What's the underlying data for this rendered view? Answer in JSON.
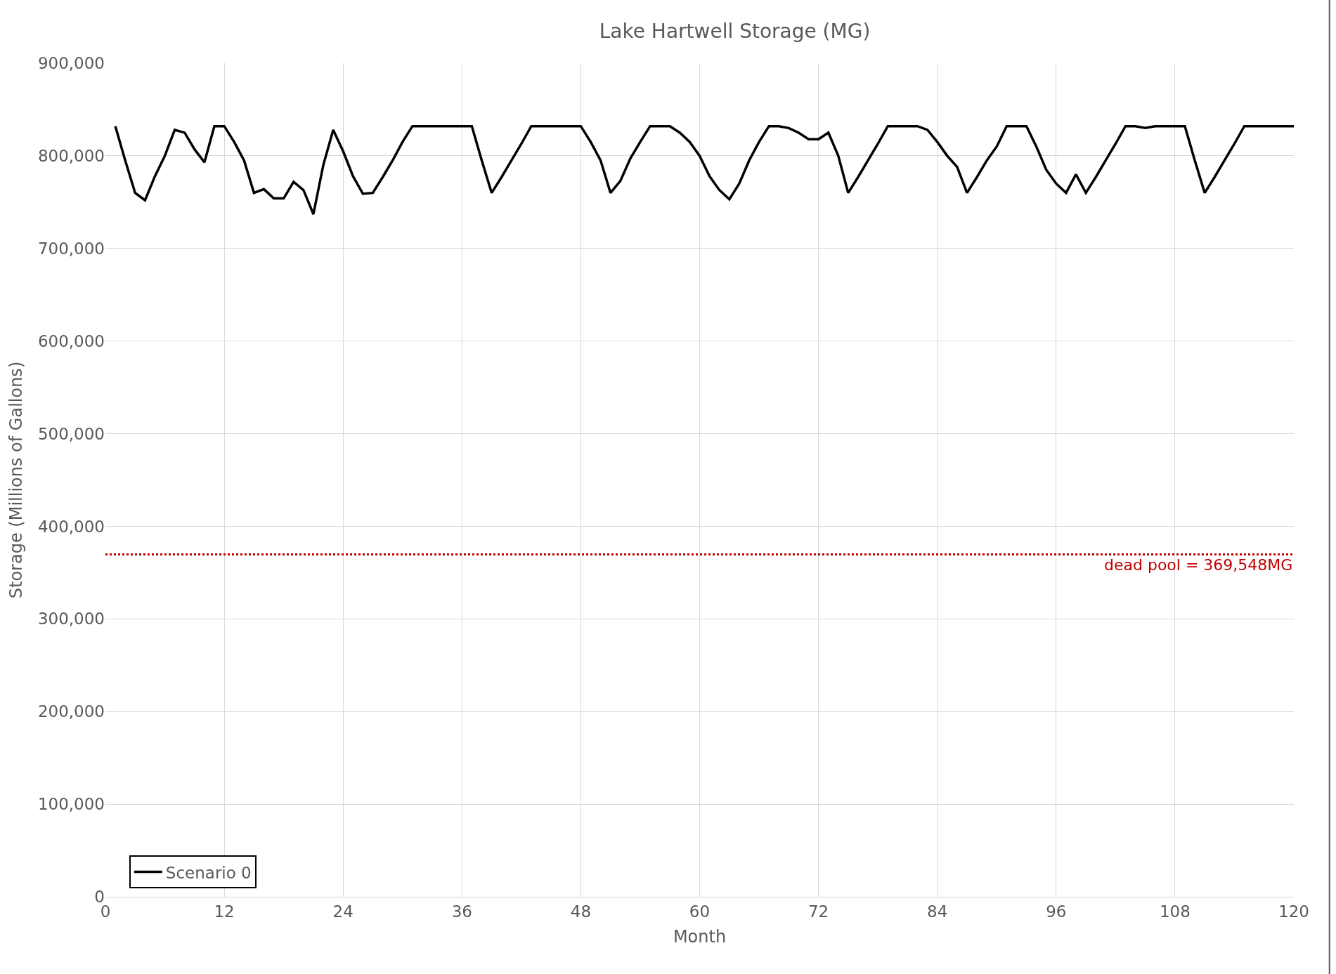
{
  "chart_data": {
    "type": "line",
    "title": "Lake Hartwell Storage (MG)",
    "xlabel": "Month",
    "ylabel": "Storage (Millions of Gallons)",
    "x": [
      1,
      2,
      3,
      4,
      5,
      6,
      7,
      8,
      9,
      10,
      11,
      12,
      13,
      14,
      15,
      16,
      17,
      18,
      19,
      20,
      21,
      22,
      23,
      24,
      25,
      26,
      27,
      28,
      29,
      30,
      31,
      32,
      33,
      34,
      35,
      36,
      37,
      38,
      39,
      40,
      41,
      42,
      43,
      44,
      45,
      46,
      47,
      48,
      49,
      50,
      51,
      52,
      53,
      54,
      55,
      56,
      57,
      58,
      59,
      60,
      61,
      62,
      63,
      64,
      65,
      66,
      67,
      68,
      69,
      70,
      71,
      72,
      73,
      74,
      75,
      76,
      77,
      78,
      79,
      80,
      81,
      82,
      83,
      84,
      85,
      86,
      87,
      88,
      89,
      90,
      91,
      92,
      93,
      94,
      95,
      96,
      97,
      98,
      99,
      100,
      101,
      102,
      103,
      104,
      105,
      106,
      107,
      108,
      109,
      110,
      111,
      112,
      113,
      114,
      115,
      116,
      117,
      118,
      119,
      120
    ],
    "series": [
      {
        "name": "Scenario 0",
        "color": "#000000",
        "values": [
          832000,
          795000,
          760000,
          752000,
          778000,
          800000,
          828000,
          825000,
          807000,
          793000,
          832000,
          832000,
          815000,
          795000,
          760000,
          764000,
          754000,
          754000,
          772000,
          763000,
          737000,
          790000,
          828000,
          805000,
          778000,
          759000,
          760000,
          777000,
          795000,
          815000,
          832000,
          832000,
          832000,
          832000,
          832000,
          832000,
          832000,
          795000,
          760000,
          777000,
          795000,
          813000,
          832000,
          832000,
          832000,
          832000,
          832000,
          832000,
          815000,
          795000,
          760000,
          773000,
          797000,
          815000,
          832000,
          832000,
          832000,
          825000,
          815000,
          800000,
          778000,
          763000,
          753000,
          770000,
          795000,
          815000,
          832000,
          832000,
          830000,
          825000,
          818000,
          818000,
          825000,
          800000,
          760000,
          777000,
          795000,
          813000,
          832000,
          832000,
          832000,
          832000,
          828000,
          815000,
          800000,
          788000,
          760000,
          777000,
          795000,
          810000,
          832000,
          832000,
          832000,
          810000,
          785000,
          770000,
          760000,
          780000,
          760000,
          777000,
          795000,
          813000,
          832000,
          832000,
          830000,
          832000,
          832000,
          832000,
          832000,
          795000,
          760000,
          777000,
          795000,
          813000,
          832000,
          832000,
          832000,
          832000,
          832000,
          832000
        ]
      }
    ],
    "xlim": [
      0,
      120
    ],
    "xticks": [
      0,
      12,
      24,
      36,
      48,
      60,
      72,
      84,
      96,
      108,
      120
    ],
    "ylim": [
      0,
      900000
    ],
    "yticks": [
      {
        "value": 0,
        "label": "0"
      },
      {
        "value": 100000,
        "label": "100,000"
      },
      {
        "value": 200000,
        "label": "200,000"
      },
      {
        "value": 300000,
        "label": "300,000"
      },
      {
        "value": 400000,
        "label": "400,000"
      },
      {
        "value": 500000,
        "label": "500,000"
      },
      {
        "value": 600000,
        "label": "600,000"
      },
      {
        "value": 700000,
        "label": "700,000"
      },
      {
        "value": 800000,
        "label": "800,000"
      },
      {
        "value": 900000,
        "label": "900,000"
      }
    ],
    "ref_lines": [
      {
        "axis": "y",
        "value": 369548,
        "label": "dead pool = 369,548MG",
        "color": "#c00000",
        "line_style": "dotted"
      }
    ],
    "grid": true,
    "legend": "bottom left",
    "marker": "none",
    "line_style": "solid"
  }
}
